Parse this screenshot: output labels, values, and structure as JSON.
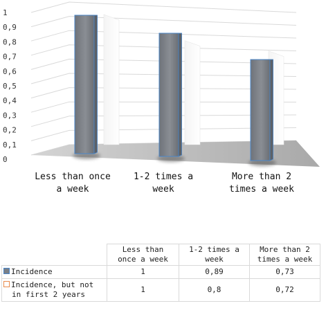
{
  "chart_data": {
    "type": "bar",
    "subtype": "3d-clustered-column",
    "categories": [
      "Less than once a week",
      "1-2 times a week",
      "More than 2 times a week"
    ],
    "category_labels": [
      [
        "Less than once",
        "a week"
      ],
      [
        "1-2 times a",
        "week"
      ],
      [
        "More than 2",
        "times a week"
      ]
    ],
    "series": [
      {
        "name": "Incidence",
        "values": [
          1,
          0.89,
          0.73
        ],
        "color": "#7a7f86",
        "edge": "#4a86c8"
      },
      {
        "name": "Incidence, but not in first 2 years",
        "values": [
          1,
          0.8,
          0.72
        ],
        "color": "#ffffff",
        "edge": "#e88a4b"
      }
    ],
    "ylim": [
      0,
      1
    ],
    "yticks": [
      "0",
      "0,1",
      "0,2",
      "0,3",
      "0,4",
      "0,5",
      "0,6",
      "0,7",
      "0,8",
      "0,9",
      "1"
    ],
    "grid": true,
    "legend": "data table below chart"
  },
  "table": {
    "headers": [
      [
        "Less than",
        "once a week"
      ],
      [
        "1-2 times a",
        "week"
      ],
      [
        "More than 2",
        "times a week"
      ]
    ],
    "rows": [
      {
        "label": [
          "Incidence"
        ],
        "values": [
          "1",
          "0,89",
          "0,73"
        ]
      },
      {
        "label": [
          "Incidence, but not",
          "in first 2 years"
        ],
        "values": [
          "1",
          "0,8",
          "0,72"
        ]
      }
    ]
  }
}
